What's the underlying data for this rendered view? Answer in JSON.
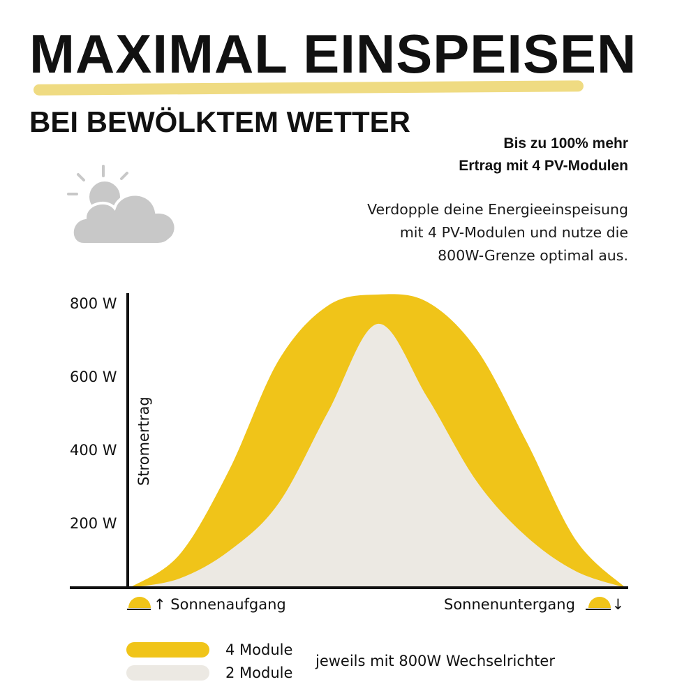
{
  "header": {
    "title": "MAXIMAL EINSPEISEN",
    "subtitle": "BEI BEWÖLKTEM WETTER",
    "highlight_line1": "Bis zu 100% mehr",
    "highlight_line2": "Ertrag mit 4 PV-Modulen",
    "desc_line1": "Verdopple deine Energieeinspeisung",
    "desc_line2": "mit 4 PV-Modulen und nutze die",
    "desc_line3": "800W-Grenze optimal aus.",
    "weather_icon": "cloud-sun-icon"
  },
  "colors": {
    "accent": "#f0c419",
    "accent_light": "#efdb82",
    "base": "#ece9e3",
    "cloud": "#c8c8c8",
    "sun_rays": "#c8c8c8",
    "text": "#111111"
  },
  "chart_data": {
    "type": "area",
    "ylabel": "Stromertrag",
    "y_ticks": [
      "800 W",
      "600 W",
      "400 W",
      "200 W"
    ],
    "y_tick_values": [
      800,
      600,
      400,
      200
    ],
    "ylim": [
      0,
      800
    ],
    "x_start_label": "Sonnenaufgang",
    "x_end_label": "Sonnenuntergang",
    "x": [
      0,
      0.1,
      0.2,
      0.3,
      0.4,
      0.5,
      0.6,
      0.7,
      0.8,
      0.9,
      1.0
    ],
    "series": [
      {
        "name": "4 Module",
        "color": "#f0c419",
        "values": [
          0,
          90,
          320,
          620,
          770,
          800,
          780,
          650,
          400,
          130,
          0
        ]
      },
      {
        "name": "2 Module",
        "color": "#ece9e3",
        "values": [
          0,
          25,
          100,
          230,
          480,
          720,
          520,
          290,
          140,
          45,
          0
        ]
      }
    ],
    "legend": [
      {
        "label": "4 Module",
        "color": "#f0c419"
      },
      {
        "label": "2 Module",
        "color": "#ece9e3"
      }
    ],
    "legend_note": "jeweils mit 800W Wechselrichter",
    "grid": false,
    "legend_position": "bottom-left"
  }
}
